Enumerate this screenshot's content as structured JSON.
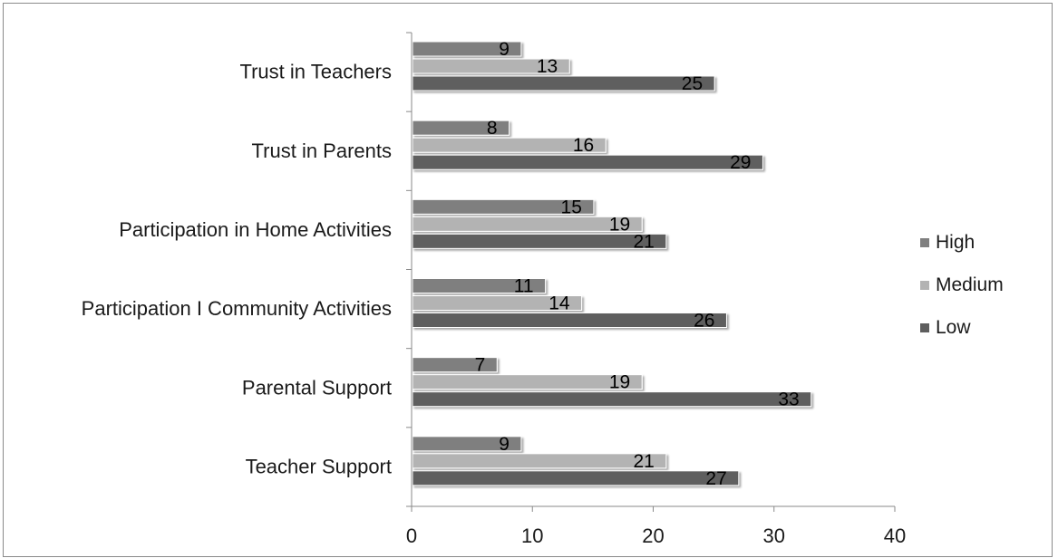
{
  "chart_data": {
    "type": "bar",
    "orientation": "horizontal",
    "categories": [
      "Trust in Teachers",
      "Trust in Parents",
      "Participation in Home Activities",
      "Participation I Community Activities",
      "Parental Support",
      "Teacher Support"
    ],
    "series": [
      {
        "name": "High",
        "color": "#7f7f7f",
        "values": [
          9,
          8,
          15,
          11,
          7,
          9
        ]
      },
      {
        "name": "Medium",
        "color": "#b3b3b3",
        "values": [
          13,
          16,
          19,
          14,
          19,
          21
        ]
      },
      {
        "name": "Low",
        "color": "#5e5e5e",
        "values": [
          25,
          29,
          21,
          26,
          33,
          27
        ]
      }
    ],
    "xlim": [
      0,
      40
    ],
    "xticks": [
      "0",
      "10",
      "20",
      "30",
      "40"
    ],
    "grid": false,
    "legend": "right",
    "data_labels": true,
    "bar_style": "3d-shadow"
  }
}
